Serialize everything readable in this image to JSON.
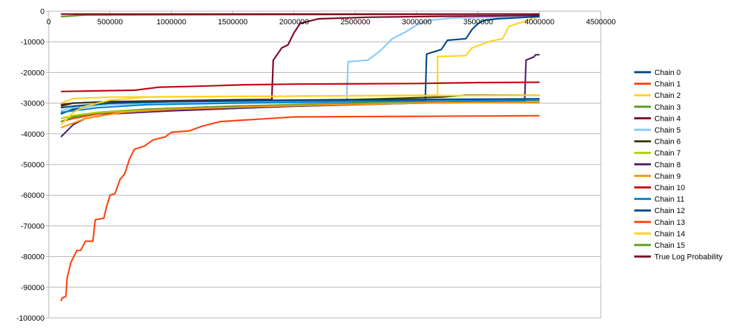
{
  "chart_data": {
    "type": "line",
    "title": "",
    "xlabel": "",
    "ylabel": "",
    "xlim": [
      0,
      4500000
    ],
    "ylim": [
      -100000,
      0
    ],
    "x_ticks": [
      0,
      500000,
      1000000,
      1500000,
      2000000,
      2500000,
      3000000,
      3500000,
      4000000,
      4500000
    ],
    "y_ticks": [
      0,
      -10000,
      -20000,
      -30000,
      -40000,
      -50000,
      -60000,
      -70000,
      -80000,
      -90000,
      -100000
    ],
    "grid": "horizontal",
    "legend_position": "right",
    "series": [
      {
        "name": "Chain 0",
        "color": "#004586",
        "points": [
          [
            100000,
            -33500
          ],
          [
            200000,
            -32000
          ],
          [
            400000,
            -30500
          ],
          [
            800000,
            -29800
          ],
          [
            1500000,
            -29300
          ],
          [
            2500000,
            -28900
          ],
          [
            3500000,
            -28700
          ],
          [
            4000000,
            -28600
          ]
        ]
      },
      {
        "name": "Chain 1",
        "color": "#ff420e",
        "points": [
          [
            100000,
            -36000
          ],
          [
            200000,
            -35000
          ],
          [
            400000,
            -33500
          ],
          [
            800000,
            -32000
          ],
          [
            1500000,
            -31000
          ],
          [
            2500000,
            -30200
          ],
          [
            3500000,
            -29800
          ],
          [
            4000000,
            -29700
          ]
        ]
      },
      {
        "name": "Chain 2",
        "color": "#ffd320",
        "points": [
          [
            100000,
            -30000
          ],
          [
            200000,
            -28500
          ],
          [
            500000,
            -28000
          ],
          [
            1500000,
            -27800
          ],
          [
            2500000,
            -27600
          ],
          [
            3000000,
            -27400
          ],
          [
            3170000,
            -27400
          ],
          [
            3170000,
            -14800
          ],
          [
            3400000,
            -14500
          ],
          [
            3450000,
            -12000
          ],
          [
            3600000,
            -9800
          ],
          [
            3700000,
            -9000
          ],
          [
            3750000,
            -5000
          ],
          [
            3900000,
            -3000
          ],
          [
            4000000,
            -1500
          ]
        ]
      },
      {
        "name": "Chain 3",
        "color": "#579d1c",
        "points": [
          [
            100000,
            -36000
          ],
          [
            200000,
            -34500
          ],
          [
            400000,
            -33000
          ],
          [
            800000,
            -32000
          ],
          [
            1500000,
            -31000
          ],
          [
            2500000,
            -30000
          ],
          [
            3500000,
            -29800
          ],
          [
            4000000,
            -29800
          ]
        ]
      },
      {
        "name": "Chain 4",
        "color": "#7e0021",
        "points": [
          [
            100000,
            -30500
          ],
          [
            200000,
            -30000
          ],
          [
            500000,
            -29500
          ],
          [
            1000000,
            -29200
          ],
          [
            1500000,
            -28900
          ],
          [
            1820000,
            -28800
          ],
          [
            1820000,
            -27000
          ],
          [
            1830000,
            -16000
          ],
          [
            1900000,
            -12000
          ],
          [
            1950000,
            -11000
          ],
          [
            2000000,
            -7000
          ],
          [
            2050000,
            -4000
          ],
          [
            2200000,
            -2500
          ],
          [
            2600000,
            -2000
          ],
          [
            3200000,
            -1700
          ],
          [
            4000000,
            -1500
          ]
        ]
      },
      {
        "name": "Chain 5",
        "color": "#83caff",
        "points": [
          [
            100000,
            -32500
          ],
          [
            200000,
            -31500
          ],
          [
            500000,
            -30500
          ],
          [
            1000000,
            -30000
          ],
          [
            1800000,
            -29500
          ],
          [
            2430000,
            -29300
          ],
          [
            2430000,
            -27000
          ],
          [
            2440000,
            -16500
          ],
          [
            2600000,
            -16000
          ],
          [
            2700000,
            -13000
          ],
          [
            2800000,
            -9000
          ],
          [
            2900000,
            -7000
          ],
          [
            3000000,
            -4500
          ],
          [
            3100000,
            -3000
          ],
          [
            3300000,
            -2200
          ],
          [
            4000000,
            -1900
          ]
        ]
      },
      {
        "name": "Chain 6",
        "color": "#314004",
        "points": [
          [
            100000,
            -31000
          ],
          [
            200000,
            -30000
          ],
          [
            500000,
            -29500
          ],
          [
            1500000,
            -29200
          ],
          [
            2500000,
            -28800
          ],
          [
            3200000,
            -28000
          ],
          [
            3400000,
            -27400
          ],
          [
            4000000,
            -27400
          ]
        ]
      },
      {
        "name": "Chain 7",
        "color": "#aecf00",
        "points": [
          [
            100000,
            -35000
          ],
          [
            200000,
            -34000
          ],
          [
            400000,
            -33000
          ],
          [
            1000000,
            -32000
          ],
          [
            2000000,
            -31000
          ],
          [
            3000000,
            -30000
          ],
          [
            4000000,
            -29500
          ]
        ]
      },
      {
        "name": "Chain 8",
        "color": "#4b1f6f",
        "points": [
          [
            100000,
            -41000
          ],
          [
            150000,
            -39000
          ],
          [
            200000,
            -37000
          ],
          [
            300000,
            -35000
          ],
          [
            500000,
            -33500
          ],
          [
            1000000,
            -32500
          ],
          [
            2000000,
            -31000
          ],
          [
            3000000,
            -30000
          ],
          [
            3880000,
            -29500
          ],
          [
            3880000,
            -28000
          ],
          [
            3890000,
            -16000
          ],
          [
            3950000,
            -15000
          ],
          [
            3970000,
            -14200
          ],
          [
            4000000,
            -14200
          ]
        ]
      },
      {
        "name": "Chain 9",
        "color": "#ff950e",
        "points": [
          [
            100000,
            -38000
          ],
          [
            200000,
            -36500
          ],
          [
            300000,
            -35000
          ],
          [
            600000,
            -33000
          ],
          [
            1000000,
            -32000
          ],
          [
            2000000,
            -30800
          ],
          [
            3000000,
            -30000
          ],
          [
            4000000,
            -29600
          ]
        ]
      },
      {
        "name": "Chain 10",
        "color": "#c5000b",
        "points": [
          [
            100000,
            -26200
          ],
          [
            400000,
            -26000
          ],
          [
            700000,
            -25800
          ],
          [
            900000,
            -24800
          ],
          [
            1200000,
            -24500
          ],
          [
            1600000,
            -24000
          ],
          [
            2000000,
            -23800
          ],
          [
            3000000,
            -23600
          ],
          [
            3500000,
            -23300
          ],
          [
            4000000,
            -23200
          ]
        ]
      },
      {
        "name": "Chain 11",
        "color": "#0084d1",
        "points": [
          [
            100000,
            -33000
          ],
          [
            200000,
            -32500
          ],
          [
            400000,
            -31500
          ],
          [
            800000,
            -30500
          ],
          [
            1500000,
            -30000
          ],
          [
            2500000,
            -29500
          ],
          [
            3500000,
            -29200
          ],
          [
            4000000,
            -29000
          ]
        ]
      },
      {
        "name": "Chain 12",
        "color": "#004586",
        "points": [
          [
            100000,
            -31500
          ],
          [
            200000,
            -31000
          ],
          [
            500000,
            -30000
          ],
          [
            1000000,
            -29500
          ],
          [
            2000000,
            -29100
          ],
          [
            3070000,
            -28900
          ],
          [
            3070000,
            -27500
          ],
          [
            3080000,
            -14000
          ],
          [
            3200000,
            -12500
          ],
          [
            3250000,
            -9500
          ],
          [
            3400000,
            -9000
          ],
          [
            3450000,
            -6000
          ],
          [
            3500000,
            -4000
          ],
          [
            3550000,
            -3000
          ],
          [
            3650000,
            -2500
          ],
          [
            3900000,
            -2000
          ],
          [
            4000000,
            -1800
          ]
        ]
      },
      {
        "name": "Chain 13",
        "color": "#ff420e",
        "points": [
          [
            100000,
            -94500
          ],
          [
            110000,
            -93500
          ],
          [
            140000,
            -93000
          ],
          [
            150000,
            -87000
          ],
          [
            180000,
            -82000
          ],
          [
            230000,
            -78000
          ],
          [
            260000,
            -78000
          ],
          [
            300000,
            -75000
          ],
          [
            360000,
            -75000
          ],
          [
            380000,
            -68000
          ],
          [
            450000,
            -67500
          ],
          [
            470000,
            -64000
          ],
          [
            500000,
            -60000
          ],
          [
            540000,
            -59500
          ],
          [
            580000,
            -55000
          ],
          [
            620000,
            -53000
          ],
          [
            660000,
            -48000
          ],
          [
            700000,
            -45000
          ],
          [
            780000,
            -44000
          ],
          [
            850000,
            -42000
          ],
          [
            950000,
            -41000
          ],
          [
            1000000,
            -39500
          ],
          [
            1150000,
            -39000
          ],
          [
            1250000,
            -37500
          ],
          [
            1400000,
            -36000
          ],
          [
            1600000,
            -35500
          ],
          [
            1800000,
            -35000
          ],
          [
            2000000,
            -34500
          ],
          [
            2500000,
            -34400
          ],
          [
            3000000,
            -34300
          ],
          [
            3500000,
            -34200
          ],
          [
            4000000,
            -34100
          ]
        ]
      },
      {
        "name": "Chain 14",
        "color": "#ffd320",
        "points": [
          [
            100000,
            -37000
          ],
          [
            150000,
            -35000
          ],
          [
            200000,
            -33000
          ],
          [
            300000,
            -31000
          ],
          [
            500000,
            -29000
          ],
          [
            800000,
            -28000
          ],
          [
            1500000,
            -27800
          ],
          [
            2500000,
            -27600
          ],
          [
            3500000,
            -27500
          ],
          [
            4000000,
            -27400
          ]
        ]
      },
      {
        "name": "Chain 15",
        "color": "#579d1c",
        "points": [
          [
            100000,
            -1800
          ],
          [
            300000,
            -1300
          ],
          [
            1000000,
            -1200
          ],
          [
            4000000,
            -1000
          ]
        ]
      },
      {
        "name": "True Log Probability",
        "color": "#7e0021",
        "points": [
          [
            100000,
            -1000
          ],
          [
            4000000,
            -1000
          ]
        ]
      }
    ]
  }
}
